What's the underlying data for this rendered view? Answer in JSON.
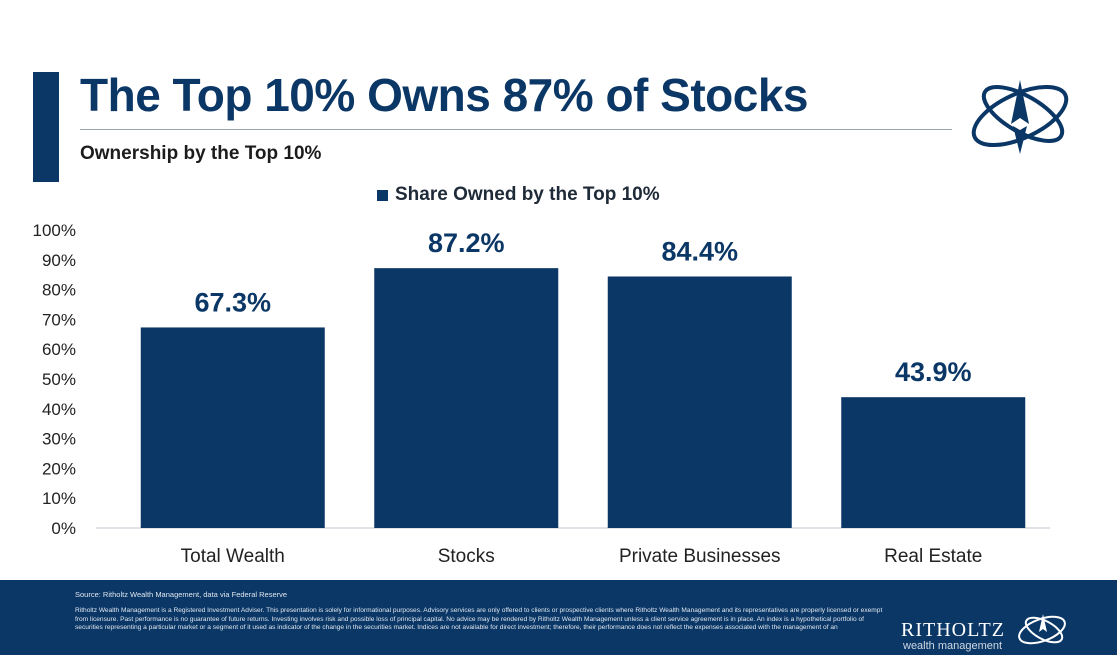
{
  "header": {
    "title": "The Top 10% Owns 87% of Stocks",
    "subtitle": "Ownership by the Top 10%"
  },
  "colors": {
    "bar": "#0b3766",
    "footer": "#0b3766",
    "text": "#222222"
  },
  "chart_data": {
    "type": "bar",
    "title": "The Top 10% Owns 87% of Stocks",
    "subtitle": "Ownership by the Top 10%",
    "legend": "Share Owned by the Top 10%",
    "categories": [
      "Total Wealth",
      "Stocks",
      "Private Businesses",
      "Real Estate"
    ],
    "values": [
      67.3,
      87.2,
      84.4,
      43.9
    ],
    "data_labels": [
      "67.3%",
      "87.2%",
      "84.4%",
      "43.9%"
    ],
    "yticks": [
      "0%",
      "10%",
      "20%",
      "30%",
      "40%",
      "50%",
      "60%",
      "70%",
      "80%",
      "90%",
      "100%"
    ],
    "ylim": [
      0,
      100
    ],
    "xlabel": "",
    "ylabel": "",
    "grid": false,
    "legend_position": "top-center"
  },
  "footer": {
    "source": "Source: Ritholtz Wealth Management, data via Federal Reserve",
    "disclaimer": "Ritholtz Wealth Management is a Registered Investment Adviser. This presentation is solely for informational purposes. Advisory services are only offered to clients or prospective clients where Ritholtz Wealth Management and its representatives are properly licensed or exempt from licensure. Past performance is no guarantee of future returns. Investing involves risk and possible loss of principal capital. No advice may be rendered by Ritholtz Wealth Management unless a client service agreement is in place. An index is a hypothetical portfolio of securities representing a particular market or a segment of it used as indicator of the change in the securities market. Indices are not available for direct investment; therefore, their performance does not reflect the expenses associated with the management of an",
    "brand_name": "RITHOLTZ",
    "brand_sub": "wealth management"
  }
}
